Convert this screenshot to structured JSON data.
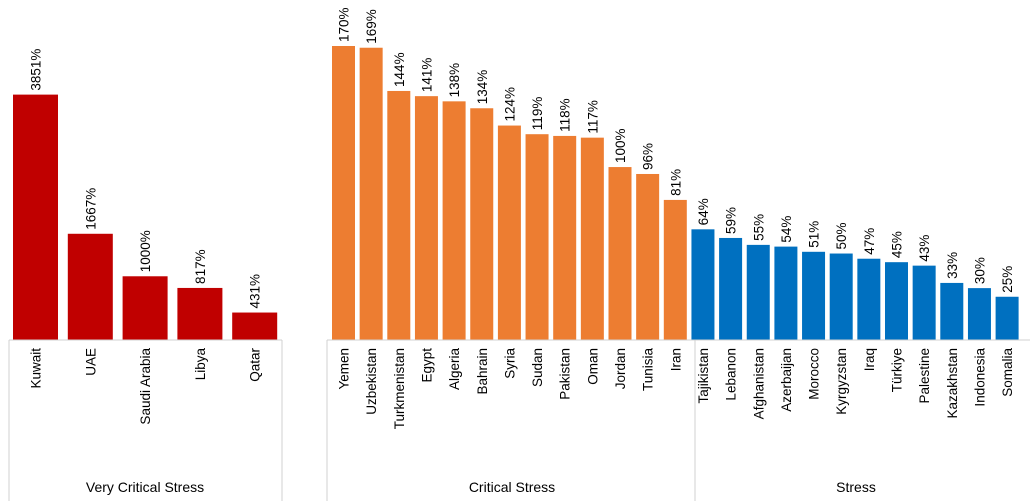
{
  "colors": {
    "very_critical": "#c00000",
    "critical": "#ed7d31",
    "stress": "#0070c0"
  },
  "chart_data": [
    {
      "type": "bar",
      "group": "Very Critical Stress",
      "color": "#c00000",
      "categories": [
        "Kuwait",
        "UAE",
        "Saudi Arabia",
        "Libya",
        "Qatar"
      ],
      "values": [
        3851,
        1667,
        1000,
        817,
        431
      ],
      "labels": [
        "3851%",
        "1667%",
        "1000%",
        "817%",
        "431%"
      ],
      "ylim": [
        0,
        4300
      ]
    },
    {
      "type": "bar",
      "group": "Critical Stress",
      "color": "#ed7d31",
      "categories": [
        "Yemen",
        "Uzbekistan",
        "Turkmenistan",
        "Egypt",
        "Algeria",
        "Bahrain",
        "Syria",
        "Sudan",
        "Pakistan",
        "Oman",
        "Jordan",
        "Tunisia",
        "Iran"
      ],
      "values": [
        170,
        169,
        144,
        141,
        138,
        134,
        124,
        119,
        118,
        117,
        100,
        96,
        81
      ],
      "labels": [
        "170%",
        "169%",
        "144%",
        "141%",
        "138%",
        "134%",
        "124%",
        "119%",
        "118%",
        "117%",
        "100%",
        "96%",
        "81%"
      ],
      "ylim": [
        0,
        170
      ]
    },
    {
      "type": "bar",
      "group": "Stress",
      "color": "#0070c0",
      "categories": [
        "Tajikistan",
        "Lebanon",
        "Afghanistan",
        "Azerbaijan",
        "Morocco",
        "Kyrgyzstan",
        "Iraq",
        "Türkiye",
        "Palestine",
        "Kazakhstan",
        "Indonesia",
        "Somalia"
      ],
      "values": [
        64,
        59,
        55,
        54,
        51,
        50,
        47,
        45,
        43,
        33,
        30,
        25
      ],
      "labels": [
        "64%",
        "59%",
        "55%",
        "54%",
        "51%",
        "50%",
        "47%",
        "45%",
        "43%",
        "33%",
        "30%",
        "25%"
      ],
      "ylim": [
        0,
        170
      ]
    }
  ]
}
